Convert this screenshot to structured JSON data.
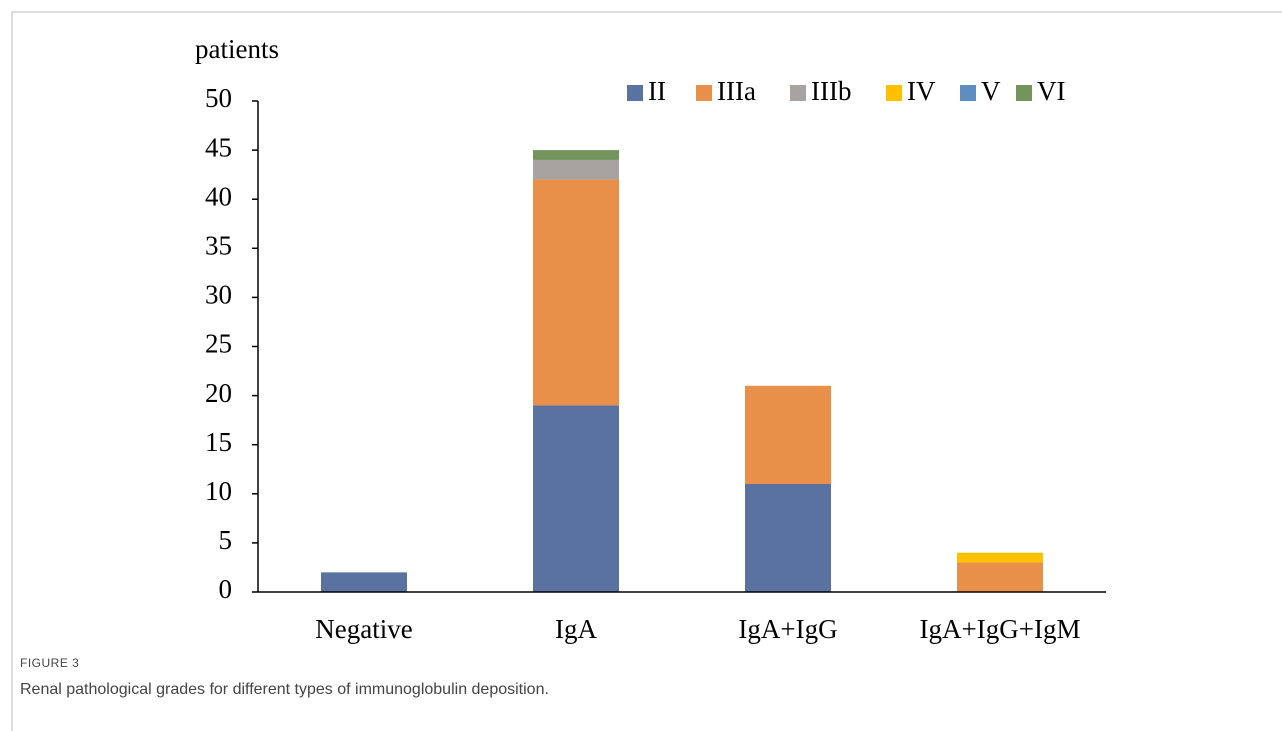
{
  "chart_data": {
    "type": "stacked_bar",
    "y_label": "patients",
    "categories": [
      "Negative",
      "IgA",
      "IgA+IgG",
      "IgA+IgG+IgM"
    ],
    "series": [
      {
        "name": "II",
        "color": "#5a72a0",
        "values": [
          2,
          19,
          11,
          0
        ]
      },
      {
        "name": "IIIa",
        "color": "#e8904a",
        "values": [
          0,
          23,
          10,
          3
        ]
      },
      {
        "name": "IIIb",
        "color": "#a8a2a0",
        "values": [
          0,
          2,
          0,
          0
        ]
      },
      {
        "name": "IV",
        "color": "#ffc000",
        "values": [
          0,
          0,
          0,
          1
        ]
      },
      {
        "name": "V",
        "color": "#5e8dc0",
        "values": [
          0,
          0,
          0,
          0
        ]
      },
      {
        "name": "VI",
        "color": "#73945a",
        "values": [
          0,
          1,
          0,
          0
        ]
      }
    ],
    "ylim": [
      0,
      50
    ],
    "yticks": [
      0,
      5,
      10,
      15,
      20,
      25,
      30,
      35,
      40,
      45,
      50
    ],
    "legend": "top-right",
    "grid": false
  },
  "figure_label": "FIGURE 3",
  "caption": "Renal pathological grades for different types of immunoglobulin deposition."
}
